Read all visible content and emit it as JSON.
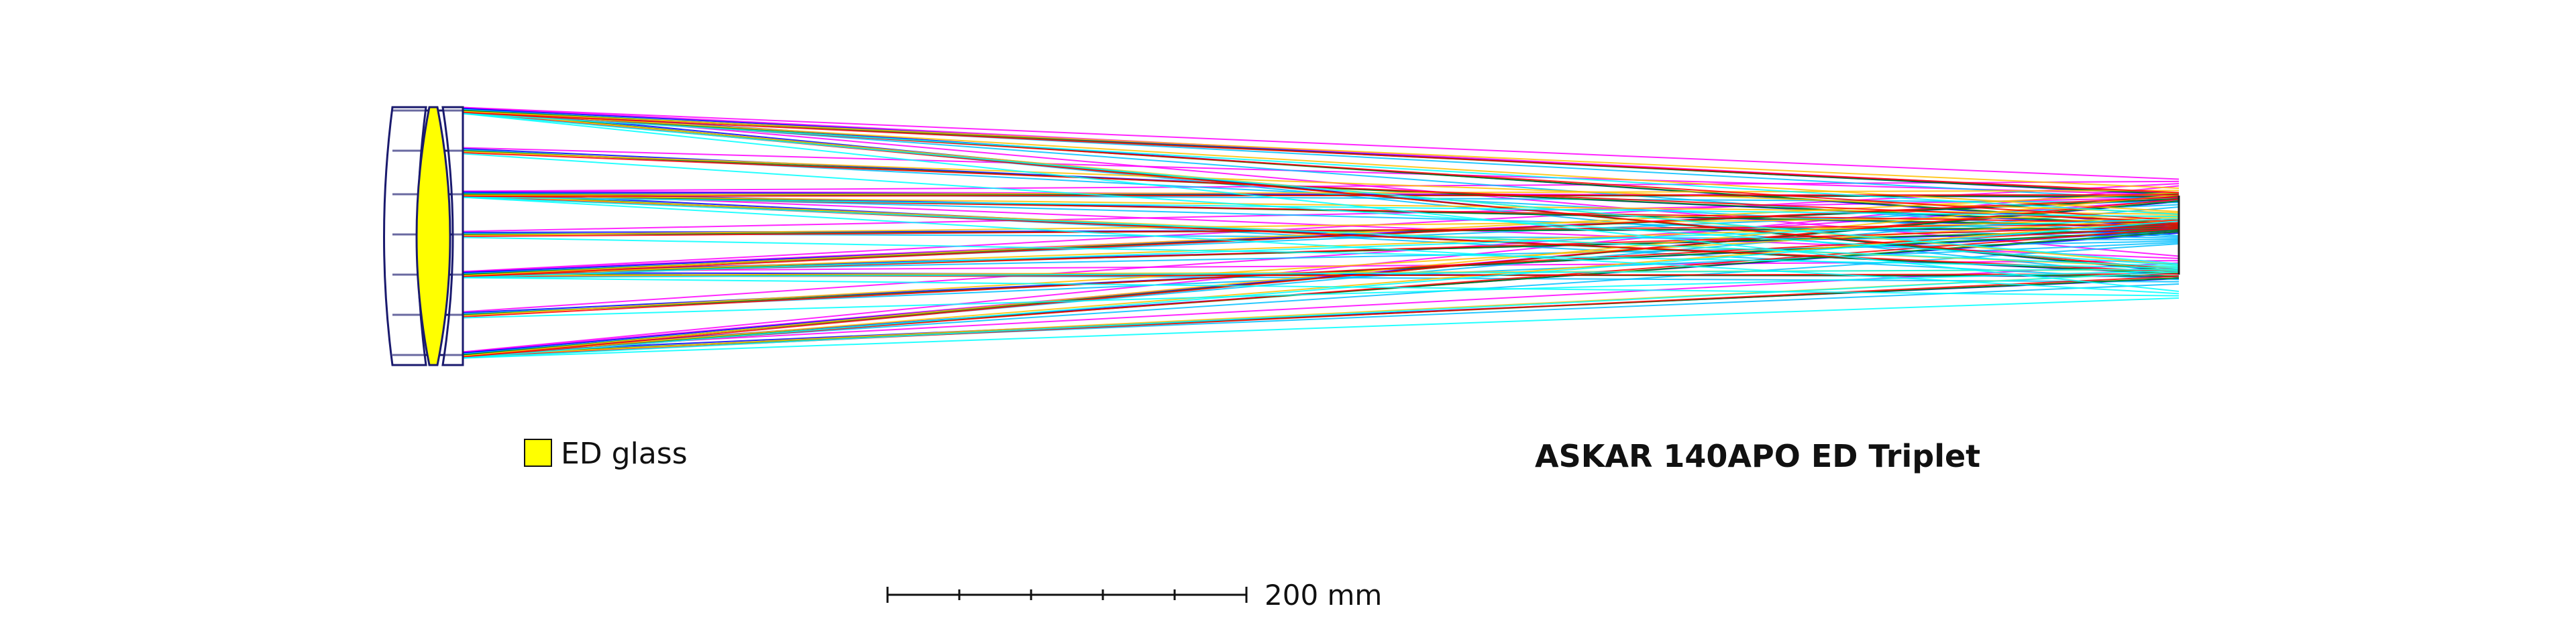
{
  "title": "ASKAR 140APO ED Triplet",
  "legend": {
    "label": "ED glass",
    "swatch_color": "#ffff00"
  },
  "scale_bar": {
    "label": "200 mm"
  },
  "colors": {
    "ed_glass": "#ffff00",
    "lens_outline": "#1a1a6e",
    "ray_wavelengths": [
      "#ff00ff",
      "#0000ff",
      "#00bfff",
      "#008000",
      "#ffbf00",
      "#ff0000",
      "#00ffff"
    ]
  }
}
